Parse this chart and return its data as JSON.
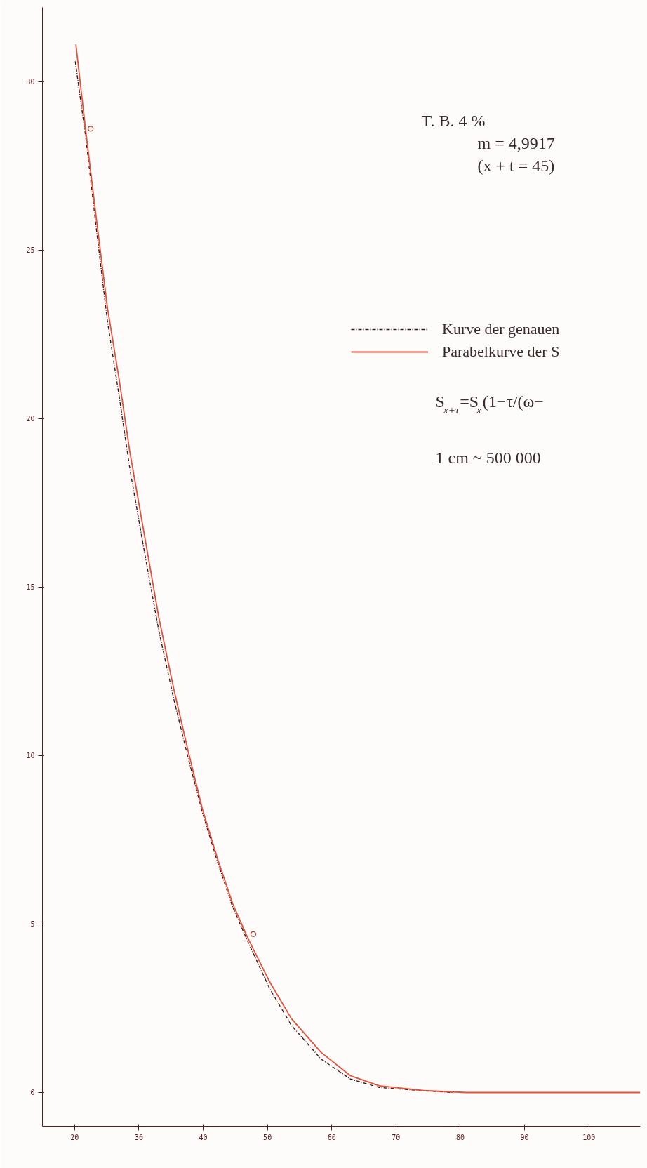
{
  "chart_data": {
    "type": "line",
    "annotations": [
      "T. B.  4 %",
      "m = 4,9917",
      "(x + t = 45)",
      "S$_{x+τ}$=S$_{x}$(1−τ/(ω−",
      "1 cm ~ 500 000"
    ],
    "xlim": [
      15,
      108
    ],
    "xticks": [
      20,
      30,
      40,
      50,
      60,
      70,
      80,
      90,
      100
    ],
    "ylim": [
      -1,
      32.2
    ],
    "yticks": [
      0,
      5,
      10,
      15,
      20,
      25,
      30
    ],
    "grid": false,
    "legend": "top right",
    "series": [
      {
        "name": "Kurve der genauen",
        "color": "#3a1a1a",
        "line_style": "dashdot",
        "x": [
          20.1,
          21.7,
          23.4,
          25.1,
          26.9,
          28.6,
          30.9,
          33.1,
          35.4,
          37.7,
          39.9,
          42.3,
          44.6,
          46.9,
          50.3,
          53.7,
          58.3,
          62.9,
          67.4,
          74.3,
          79
        ],
        "values": [
          30.6,
          28.4,
          25.6,
          22.9,
          20.7,
          18.5,
          16.0,
          13.7,
          11.7,
          9.9,
          8.3,
          6.8,
          5.5,
          4.5,
          3.1,
          2.0,
          1.0,
          0.4,
          0.15,
          0.05,
          0
        ]
      },
      {
        "name": "Parabelkurve der S",
        "color": "#e8503a",
        "line_style": "solid",
        "x": [
          20.2,
          21.7,
          23.4,
          25.1,
          26.9,
          28.6,
          30.9,
          33.1,
          35.4,
          37.7,
          39.9,
          42.3,
          44.6,
          46.9,
          50.3,
          53.7,
          58.3,
          62.9,
          67.4,
          74.3,
          81,
          92.6,
          108
        ],
        "values": [
          31.1,
          28.6,
          25.9,
          23.3,
          21.2,
          19.0,
          16.5,
          14.1,
          12.0,
          10.1,
          8.4,
          6.9,
          5.6,
          4.6,
          3.3,
          2.2,
          1.2,
          0.5,
          0.2,
          0.06,
          0,
          0,
          0
        ]
      },
      {
        "type": "scatter",
        "color": "#b03a2e",
        "marker": "circle",
        "x": [
          22.5,
          47.8
        ],
        "values": [
          28.6,
          4.7
        ]
      }
    ]
  }
}
